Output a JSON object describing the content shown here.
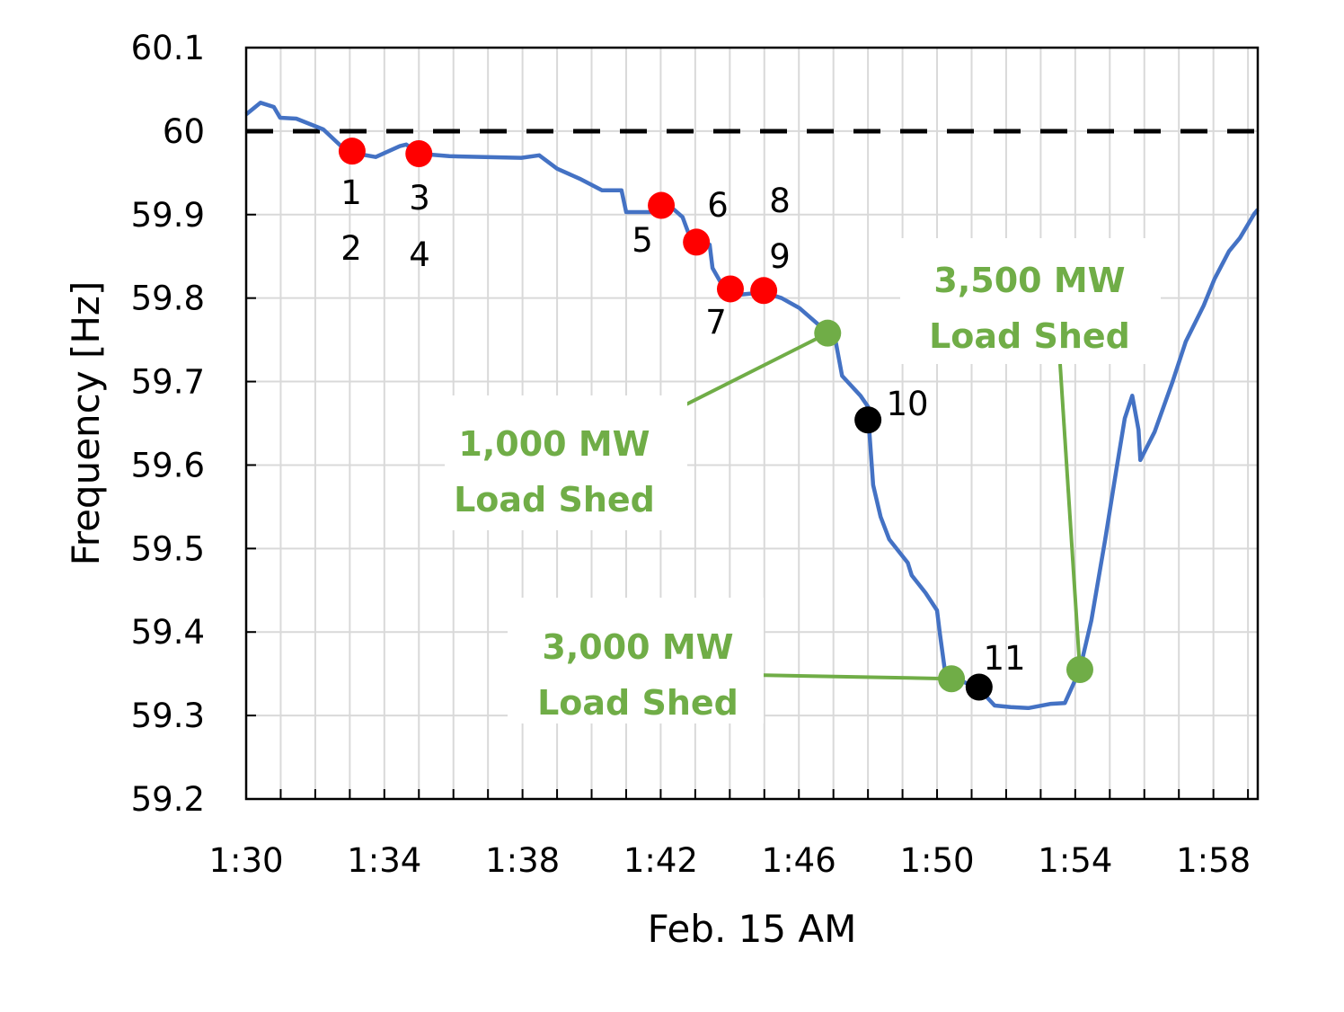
{
  "chart_data": {
    "type": "line",
    "title": "",
    "xlabel": "Feb. 15 AM",
    "ylabel": "Frequency [Hz]",
    "xlim": [
      "1:30:00",
      "1:59:17"
    ],
    "ylim": [
      59.2,
      60.1
    ],
    "x_ticks": [
      "1:30",
      "1:34",
      "1:38",
      "1:42",
      "1:46",
      "1:50",
      "1:54",
      "1:58"
    ],
    "y_ticks": [
      "59.2",
      "59.3",
      "59.4",
      "59.5",
      "59.6",
      "59.7",
      "59.8",
      "59.9",
      "60",
      "60.1"
    ],
    "grid": true,
    "reference_line": {
      "y": 60,
      "style": "dashed",
      "color": "#000000"
    },
    "series": [
      {
        "color": "#4472c4",
        "x": [
          "1:30:00",
          "1:30:25",
          "1:30:48",
          "1:30:59",
          "1:31:27",
          "1:32:14",
          "1:32:45",
          "1:33:04",
          "1:33:45",
          "1:34:27",
          "1:34:38",
          "1:35:00",
          "1:35:53",
          "1:36:55",
          "1:37:58",
          "1:38:29",
          "1:39:00",
          "1:39:39",
          "1:40:18",
          "1:40:52",
          "1:41:00",
          "1:41:44",
          "1:42:01",
          "1:42:23",
          "1:42:38",
          "1:42:54",
          "1:43:25",
          "1:43:30",
          "1:43:49",
          "1:44:15",
          "1:44:59",
          "1:45:30",
          "1:46:01",
          "1:46:36",
          "1:46:50",
          "1:47:04",
          "1:47:15",
          "1:47:47",
          "1:48:00",
          "1:48:01",
          "1:48:09",
          "1:48:22",
          "1:48:37",
          "1:49:09",
          "1:49:16",
          "1:49:40",
          "1:50:00",
          "1:50:05",
          "1:50:14",
          "1:50:50",
          "1:51:13",
          "1:51:40",
          "1:52:08",
          "1:52:39",
          "1:53:18",
          "1:53:42",
          "1:54:08",
          "1:54:28",
          "1:54:52",
          "1:55:12",
          "1:55:26",
          "1:55:39",
          "1:55:50",
          "1:55:53",
          "1:56:18",
          "1:56:49",
          "1:57:12",
          "1:57:43",
          "1:58:02",
          "1:58:27",
          "1:58:46",
          "1:59:11",
          "1:59:17"
        ],
        "y": [
          60.02,
          60.034,
          60.029,
          60.016,
          60.015,
          60.002,
          59.982,
          59.974,
          59.969,
          59.982,
          59.984,
          59.973,
          59.97,
          59.969,
          59.968,
          59.971,
          59.955,
          59.943,
          59.929,
          59.929,
          59.903,
          59.903,
          59.909,
          59.906,
          59.897,
          59.867,
          59.864,
          59.836,
          59.813,
          59.804,
          59.807,
          59.8,
          59.788,
          59.767,
          59.757,
          59.748,
          59.707,
          59.683,
          59.67,
          59.653,
          59.576,
          59.538,
          59.511,
          59.483,
          59.468,
          59.447,
          59.426,
          59.398,
          59.352,
          59.339,
          59.332,
          59.312,
          59.31,
          59.309,
          59.314,
          59.315,
          59.355,
          59.414,
          59.511,
          59.597,
          59.656,
          59.683,
          59.642,
          59.606,
          59.64,
          59.7,
          59.748,
          59.791,
          59.823,
          59.856,
          59.872,
          59.901,
          59.906
        ]
      }
    ],
    "markers": [
      {
        "x": "1:33:04",
        "y": 59.976,
        "color": "#ff0000",
        "label": "1\n2"
      },
      {
        "x": "1:35:00",
        "y": 59.973,
        "color": "#ff0000",
        "label": "3\n4"
      },
      {
        "x": "1:42:01",
        "y": 59.911,
        "color": "#ff0000",
        "label": "5"
      },
      {
        "x": "1:43:02",
        "y": 59.867,
        "color": "#ff0000",
        "label": "6"
      },
      {
        "x": "1:44:01",
        "y": 59.811,
        "color": "#ff0000",
        "label": "7"
      },
      {
        "x": "1:44:59",
        "y": 59.809,
        "color": "#ff0000",
        "label": "8\n9"
      },
      {
        "x": "1:48:00",
        "y": 59.654,
        "color": "#000000",
        "label": "10"
      },
      {
        "x": "1:51:13",
        "y": 59.334,
        "color": "#000000",
        "label": "11"
      },
      {
        "x": "1:46:50",
        "y": 59.758,
        "color": "#70ad47",
        "label": ""
      },
      {
        "x": "1:50:25",
        "y": 59.344,
        "color": "#70ad47",
        "label": ""
      },
      {
        "x": "1:54:08",
        "y": 59.355,
        "color": "#70ad47",
        "label": ""
      }
    ],
    "annotations": [
      {
        "line1": "1,000 MW",
        "line2": "Load Shed",
        "color": "#70ad47"
      },
      {
        "line1": "3,000 MW",
        "line2": "Load Shed",
        "color": "#70ad47"
      },
      {
        "line1": "3,500 MW",
        "line2": "Load Shed",
        "color": "#70ad47"
      }
    ]
  }
}
